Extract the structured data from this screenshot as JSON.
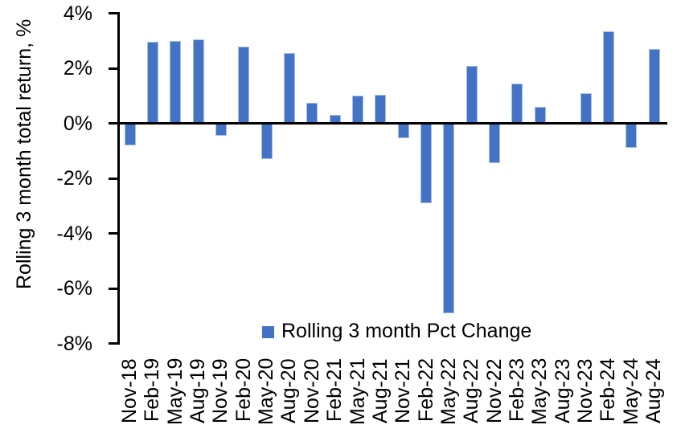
{
  "chart_data": {
    "type": "bar",
    "title": "",
    "xlabel": "",
    "ylabel": "Rolling 3 month total return, %",
    "categories": [
      "Nov-18",
      "Feb-19",
      "May-19",
      "Aug-19",
      "Nov-19",
      "Feb-20",
      "May-20",
      "Aug-20",
      "Nov-20",
      "Feb-21",
      "May-21",
      "Aug-21",
      "Nov-21",
      "Feb-22",
      "May-22",
      "Aug-22",
      "Nov-22",
      "Feb-23",
      "May-23",
      "Aug-23",
      "Nov-23",
      "Feb-24",
      "May-24",
      "Aug-24"
    ],
    "values": [
      -0.8,
      2.95,
      3.0,
      3.05,
      -0.45,
      2.8,
      -1.3,
      2.55,
      0.75,
      0.3,
      1.0,
      1.05,
      -0.55,
      -2.9,
      -6.9,
      2.1,
      -1.45,
      1.45,
      0.6,
      0.0,
      1.1,
      3.35,
      -0.9,
      2.7
    ],
    "ylim": [
      -8,
      4
    ],
    "ytick_step": 2,
    "yticks": [
      "4%",
      "2%",
      "0%",
      "-2%",
      "-4%",
      "-6%",
      "-8%"
    ],
    "grid": false,
    "legend": {
      "label": "Rolling 3 month Pct Change",
      "position": "bottom-center"
    },
    "colors": {
      "bar_fill": "#4472C4",
      "bar_border": "#A6BFE4",
      "axis": "#000000",
      "text": "#000000"
    }
  }
}
